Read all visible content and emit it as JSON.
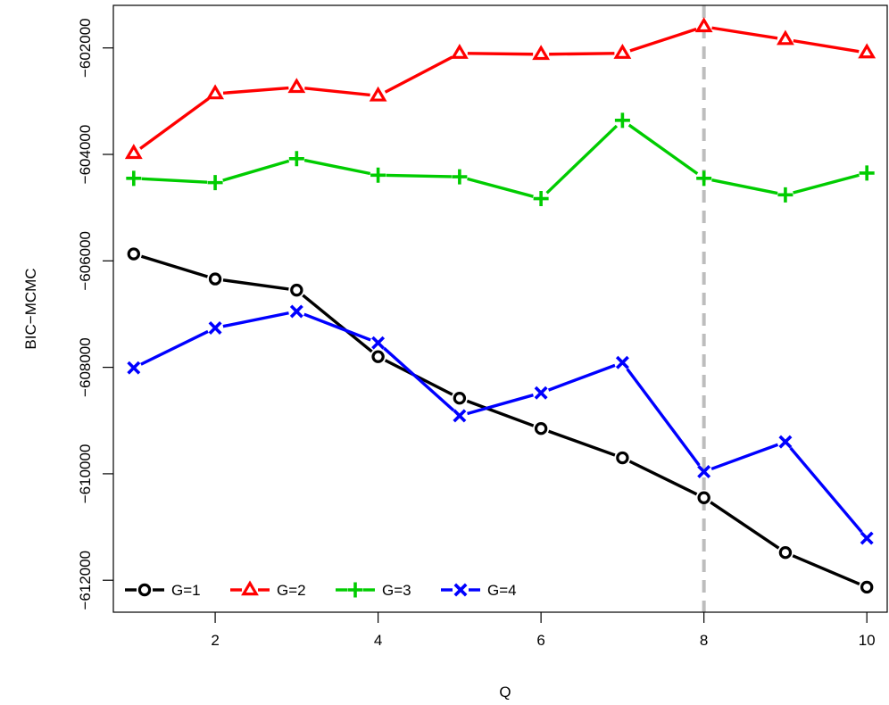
{
  "chart_data": {
    "type": "line",
    "title": "",
    "xlabel": "Q",
    "ylabel": "BIC−MCMC",
    "xlim": [
      0.75,
      10.25
    ],
    "ylim": [
      -612600,
      -601200
    ],
    "x": [
      1,
      2,
      3,
      4,
      5,
      6,
      7,
      8,
      9,
      10
    ],
    "x_ticks": [
      2,
      4,
      6,
      8,
      10
    ],
    "x_tick_labels": [
      "2",
      "4",
      "6",
      "8",
      "10"
    ],
    "y_ticks": [
      -612000,
      -610000,
      -608000,
      -606000,
      -604000,
      -602000
    ],
    "y_tick_labels": [
      "−612000",
      "−610000",
      "−608000",
      "−606000",
      "−604000",
      "−602000"
    ],
    "grid": false,
    "vline": {
      "x": 8,
      "color": "#bdbdbd",
      "style": "dashed"
    },
    "legend": {
      "placement": "bottom-left",
      "orientation": "horizontal"
    },
    "series": [
      {
        "name": "G=1",
        "color": "#000000",
        "marker": "circle",
        "values": [
          -605870,
          -606340,
          -606550,
          -607800,
          -608580,
          -609150,
          -609700,
          -610450,
          -611480,
          -612130
        ]
      },
      {
        "name": "G=2",
        "color": "#ff0000",
        "marker": "triangle",
        "values": [
          -603980,
          -602860,
          -602740,
          -602900,
          -602100,
          -602120,
          -602100,
          -601600,
          -601840,
          -602090
        ]
      },
      {
        "name": "G=3",
        "color": "#00cc00",
        "marker": "plus",
        "values": [
          -604450,
          -604530,
          -604080,
          -604390,
          -604420,
          -604830,
          -603360,
          -604450,
          -604760,
          -604350
        ]
      },
      {
        "name": "G=4",
        "color": "#0000ff",
        "marker": "cross",
        "values": [
          -608010,
          -607260,
          -606950,
          -607540,
          -608910,
          -608480,
          -607910,
          -609960,
          -609400,
          -611210
        ]
      }
    ]
  }
}
